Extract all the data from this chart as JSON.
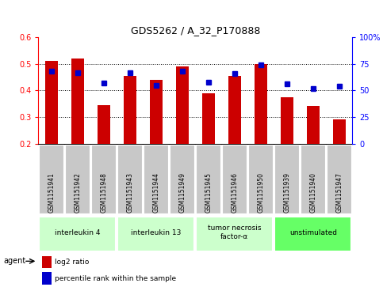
{
  "title": "GDS5262 / A_32_P170888",
  "samples": [
    "GSM1151941",
    "GSM1151942",
    "GSM1151948",
    "GSM1151943",
    "GSM1151944",
    "GSM1151949",
    "GSM1151945",
    "GSM1151946",
    "GSM1151950",
    "GSM1151939",
    "GSM1151940",
    "GSM1151947"
  ],
  "log2_ratio": [
    0.51,
    0.52,
    0.345,
    0.455,
    0.44,
    0.49,
    0.388,
    0.455,
    0.498,
    0.375,
    0.34,
    0.29
  ],
  "log2_base": 0.2,
  "percentile_rank": [
    68,
    67,
    57,
    67,
    55,
    68,
    58,
    66,
    74,
    56,
    52,
    54
  ],
  "ylim_left": [
    0.2,
    0.6
  ],
  "ylim_right": [
    0,
    100
  ],
  "yticks_left": [
    0.2,
    0.3,
    0.4,
    0.5,
    0.6
  ],
  "yticks_right": [
    0,
    25,
    50,
    75,
    100
  ],
  "groups": [
    {
      "label": "interleukin 4",
      "cols": [
        0,
        1,
        2
      ],
      "color": "#ccffcc"
    },
    {
      "label": "interleukin 13",
      "cols": [
        3,
        4,
        5
      ],
      "color": "#ccffcc"
    },
    {
      "label": "tumor necrosis\nfactor-α",
      "cols": [
        6,
        7,
        8
      ],
      "color": "#ccffcc"
    },
    {
      "label": "unstimulated",
      "cols": [
        9,
        10,
        11
      ],
      "color": "#66ff66"
    }
  ],
  "bar_color": "#cc0000",
  "point_color": "#0000cc",
  "bar_width": 0.5,
  "sample_box_color": "#c8c8c8",
  "legend_items": [
    {
      "color": "#cc0000",
      "label": "log2 ratio"
    },
    {
      "color": "#0000cc",
      "label": "percentile rank within the sample"
    }
  ],
  "grid_yticks": [
    0.3,
    0.4,
    0.5
  ]
}
